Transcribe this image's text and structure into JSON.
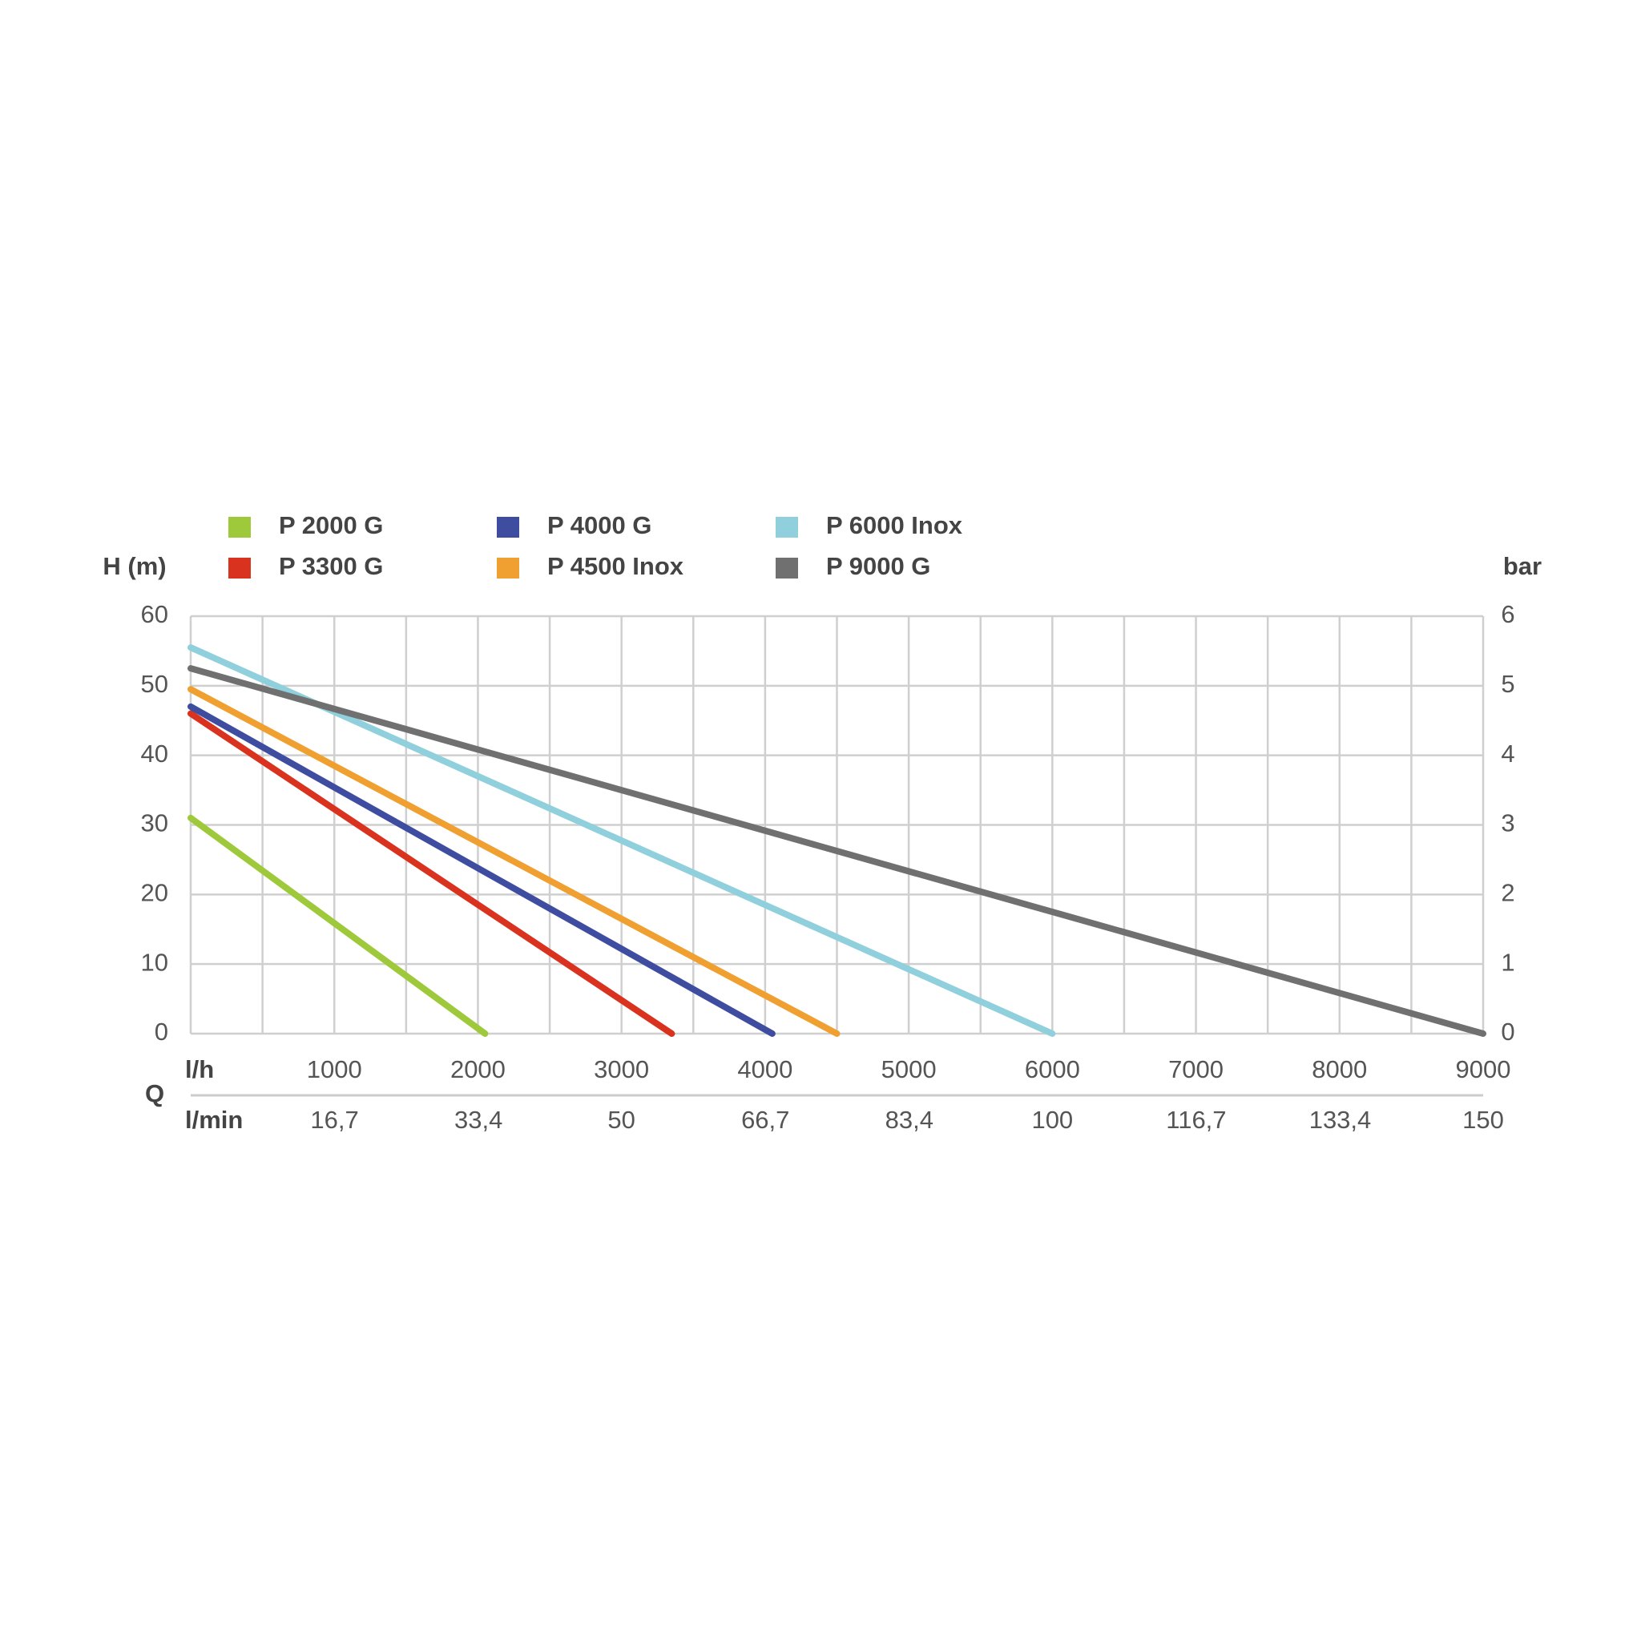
{
  "chart_data": {
    "type": "line",
    "y_label": "H (m)",
    "y2_label": "bar",
    "x_label": "Q",
    "x_row_label": "l/h",
    "x2_row_label": "l/min",
    "xlim": [
      0,
      9000
    ],
    "xticks": [
      1000,
      2000,
      3000,
      4000,
      5000,
      6000,
      7000,
      8000,
      9000
    ],
    "x_minor_grid": [
      0,
      500,
      1500,
      2500,
      3500,
      4500,
      5500,
      6500,
      7500,
      8500
    ],
    "x2lim": [
      0,
      150
    ],
    "x2ticks": [
      {
        "value": 16.7,
        "label": "16,7"
      },
      {
        "value": 33.4,
        "label": "33,4"
      },
      50,
      {
        "value": 66.7,
        "label": "66,7"
      },
      {
        "value": 83.4,
        "label": "83,4"
      },
      100,
      {
        "value": 116.7,
        "label": "116,7"
      },
      {
        "value": 133.4,
        "label": "133,4"
      },
      150
    ],
    "ylim": [
      0,
      60
    ],
    "yticks": [
      0,
      10,
      20,
      30,
      40,
      50,
      60
    ],
    "y2lim": [
      0,
      6
    ],
    "y2ticks": [
      0,
      1,
      2,
      3,
      4,
      5,
      6
    ],
    "grid": true,
    "series": [
      {
        "name": "P 2000 G",
        "color": "#9dc93a",
        "x": [
          0,
          2050
        ],
        "values": [
          31,
          0
        ]
      },
      {
        "name": "P 3300 G",
        "color": "#d9321f",
        "x": [
          0,
          3350
        ],
        "values": [
          46,
          0
        ]
      },
      {
        "name": "P 4000 G",
        "color": "#3e4da0",
        "x": [
          0,
          4050
        ],
        "values": [
          47,
          0
        ]
      },
      {
        "name": "P 4500 Inox",
        "color": "#f0a030",
        "x": [
          0,
          4500
        ],
        "values": [
          49.5,
          0
        ]
      },
      {
        "name": "P 6000 Inox",
        "color": "#8fd0dc",
        "x": [
          0,
          6000
        ],
        "values": [
          55.5,
          0
        ]
      },
      {
        "name": "P 9000 G",
        "color": "#707070",
        "x": [
          0,
          9000
        ],
        "values": [
          52.5,
          0
        ]
      }
    ]
  }
}
